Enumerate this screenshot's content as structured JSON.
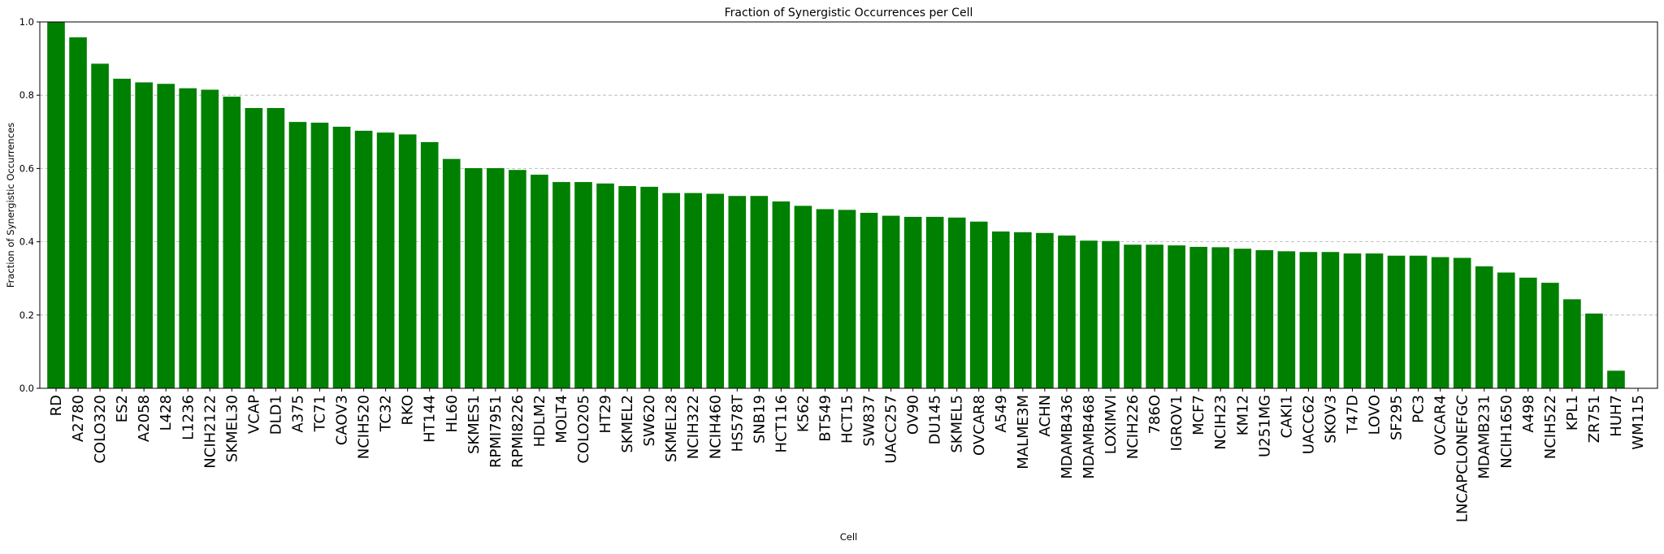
{
  "chart_data": {
    "type": "bar",
    "title": "Fraction of Synergistic Occurrences per Cell",
    "xlabel": "Cell",
    "ylabel": "Fraction of Synergistic Occurrences",
    "ylim": [
      0,
      1.0
    ],
    "yticks": [
      "0.0",
      "0.2",
      "0.4",
      "0.6",
      "0.8",
      "1.0"
    ],
    "grid": "y-dashed",
    "bar_color": "#008000",
    "categories": [
      "RD",
      "A2780",
      "COLO320",
      "ES2",
      "A2058",
      "L428",
      "L1236",
      "NCIH2122",
      "SKMEL30",
      "VCAP",
      "DLD1",
      "A375",
      "TC71",
      "CAOV3",
      "NCIH520",
      "TC32",
      "RKO",
      "HT144",
      "HL60",
      "SKMES1",
      "RPMI7951",
      "RPMI8226",
      "HDLM2",
      "MOLT4",
      "COLO205",
      "HT29",
      "SKMEL2",
      "SW620",
      "SKMEL28",
      "NCIH322",
      "NCIH460",
      "HS578T",
      "SNB19",
      "HCT116",
      "K562",
      "BT549",
      "HCT15",
      "SW837",
      "UACC257",
      "OV90",
      "DU145",
      "SKMEL5",
      "OVCAR8",
      "A549",
      "MALME3M",
      "ACHN",
      "MDAMB436",
      "MDAMB468",
      "LOXIMVI",
      "NCIH226",
      "786O",
      "IGROV1",
      "MCF7",
      "NCIH23",
      "KM12",
      "U251MG",
      "CAKI1",
      "UACC62",
      "SKOV3",
      "T47D",
      "LOVO",
      "SF295",
      "PC3",
      "OVCAR4",
      "LNCAPCLONEFGC",
      "MDAMB231",
      "NCIH1650",
      "A498",
      "NCIH522",
      "KPL1",
      "ZR751",
      "HUH7",
      "WM115"
    ],
    "values": [
      1.0,
      0.958,
      0.886,
      0.845,
      0.835,
      0.831,
      0.819,
      0.815,
      0.796,
      0.765,
      0.765,
      0.727,
      0.725,
      0.714,
      0.703,
      0.698,
      0.693,
      0.672,
      0.626,
      0.601,
      0.601,
      0.596,
      0.583,
      0.563,
      0.563,
      0.559,
      0.552,
      0.55,
      0.533,
      0.533,
      0.531,
      0.525,
      0.525,
      0.51,
      0.498,
      0.489,
      0.487,
      0.479,
      0.471,
      0.468,
      0.468,
      0.466,
      0.455,
      0.428,
      0.426,
      0.424,
      0.417,
      0.403,
      0.402,
      0.392,
      0.392,
      0.39,
      0.386,
      0.385,
      0.381,
      0.377,
      0.374,
      0.372,
      0.372,
      0.368,
      0.368,
      0.362,
      0.362,
      0.358,
      0.356,
      0.333,
      0.316,
      0.302,
      0.288,
      0.243,
      0.204,
      0.048,
      0.0
    ]
  }
}
